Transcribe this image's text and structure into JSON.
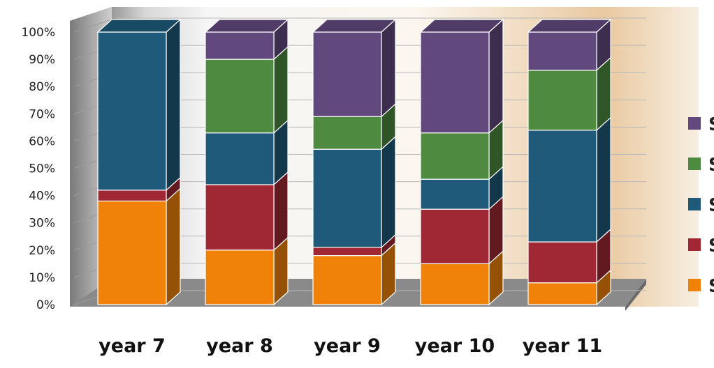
{
  "chart_data": {
    "type": "bar",
    "stacked": true,
    "percent": true,
    "three_d": true,
    "categories": [
      "year 7",
      "year 8",
      "year 9",
      "year 10",
      "year 11"
    ],
    "ylim": [
      0,
      100
    ],
    "yticks": [
      "0%",
      "10%",
      "20%",
      "30%",
      "40%",
      "50%",
      "60%",
      "70%",
      "80%",
      "90%",
      "100%"
    ],
    "grid": true,
    "legend_position": "right",
    "series": [
      {
        "name": "S",
        "color": "#F0820A",
        "values": [
          38,
          20,
          18,
          15,
          8
        ]
      },
      {
        "name": "S",
        "color": "#A02834",
        "values": [
          4,
          24,
          3,
          20,
          15
        ]
      },
      {
        "name": "S",
        "color": "#1F5A7A",
        "values": [
          58,
          19,
          36,
          11,
          41
        ]
      },
      {
        "name": "S",
        "color": "#4E8A40",
        "values": [
          0,
          27,
          12,
          17,
          22
        ]
      },
      {
        "name": "S",
        "color": "#62497D",
        "values": [
          0,
          10,
          31,
          37,
          14
        ]
      }
    ]
  }
}
